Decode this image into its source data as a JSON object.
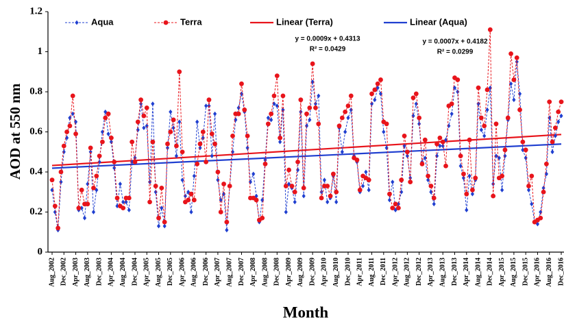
{
  "chart_data": {
    "type": "line",
    "x_label": "Month",
    "y_label": "AOD at 550 nm",
    "ylim": [
      0,
      1.2
    ],
    "yticks": [
      0,
      0.2,
      0.4,
      0.6,
      0.8,
      1,
      1.2
    ],
    "categories": [
      "Aug_2002",
      null,
      null,
      null,
      "Dec_2002",
      null,
      null,
      null,
      "Apr_2003",
      null,
      null,
      null,
      "Aug_2003",
      null,
      null,
      null,
      "Dec_2003",
      null,
      null,
      null,
      "Apr_2004",
      null,
      null,
      null,
      "Aug_2004",
      null,
      null,
      null,
      "Dec_2004",
      null,
      null,
      null,
      "Apr_2005",
      null,
      null,
      null,
      "Aug_2005",
      null,
      null,
      null,
      "Dec_2005",
      null,
      null,
      null,
      "Apr_2006",
      null,
      null,
      null,
      "Aug_2006",
      null,
      null,
      null,
      "Dec_2006",
      null,
      null,
      null,
      "Apr_2007",
      null,
      null,
      null,
      "Aug_2007",
      null,
      null,
      null,
      "Dec_2007",
      null,
      null,
      null,
      "Apr_2008",
      null,
      null,
      null,
      "Aug_2008",
      null,
      null,
      null,
      "Dec_2008",
      null,
      null,
      null,
      "Apr_2009",
      null,
      null,
      null,
      "Aug_2009",
      null,
      null,
      null,
      "Dec_2009",
      null,
      null,
      null,
      "Apr_2010",
      null,
      null,
      null,
      "Aug_2010",
      null,
      null,
      null,
      "Dec_2010",
      null,
      null,
      null,
      "Apr_2011",
      null,
      null,
      null,
      "Aug_2011",
      null,
      null,
      null,
      "Dec_2011",
      null,
      null,
      null,
      "Apr_2012",
      null,
      null,
      null,
      "Aug_2012",
      null,
      null,
      null,
      "Dec_2012",
      null,
      null,
      null,
      "Apr_2013",
      null,
      null,
      null,
      "Aug_2013",
      null,
      null,
      null,
      "Dec_2013",
      null,
      null,
      null,
      "Apr_2014",
      null,
      null,
      null,
      "Aug_2014",
      null,
      null,
      null,
      "Dec_2014",
      null,
      null,
      null,
      "Apr_2015",
      null,
      null,
      null,
      "Aug_2015",
      null,
      null,
      null,
      "Dec_2015",
      null,
      null,
      null,
      "Apr_2016",
      null,
      null,
      null,
      "Aug_2016",
      null,
      null,
      null,
      "Dec_2016"
    ],
    "series": [
      {
        "name": "Aqua",
        "color": "#1f3fd0",
        "marker": "diamond",
        "values": [
          0.31,
          0.2,
          0.11,
          0.35,
          0.5,
          0.57,
          0.67,
          0.69,
          0.65,
          0.21,
          0.22,
          0.17,
          0.34,
          0.5,
          0.2,
          0.31,
          0.45,
          0.6,
          0.7,
          0.59,
          0.55,
          0.42,
          0.23,
          0.34,
          0.25,
          0.25,
          0.21,
          0.45,
          0.47,
          0.61,
          0.74,
          0.62,
          0.63,
          0.35,
          0.74,
          0.3,
          0.13,
          0.22,
          0.13,
          0.52,
          0.7,
          0.62,
          0.48,
          0.65,
          0.36,
          0.28,
          0.3,
          0.2,
          0.38,
          0.65,
          0.52,
          0.57,
          0.73,
          0.73,
          0.48,
          0.69,
          0.36,
          0.26,
          0.29,
          0.11,
          0.33,
          0.5,
          0.66,
          0.72,
          0.79,
          0.7,
          0.52,
          0.35,
          0.39,
          0.28,
          0.15,
          0.26,
          0.46,
          0.67,
          0.66,
          0.74,
          0.73,
          0.55,
          0.71,
          0.2,
          0.34,
          0.32,
          0.25,
          0.41,
          0.7,
          0.28,
          0.63,
          0.66,
          0.85,
          0.74,
          0.78,
          0.3,
          0.36,
          0.25,
          0.27,
          0.38,
          0.25,
          0.62,
          0.5,
          0.6,
          0.67,
          0.71,
          0.48,
          0.45,
          0.3,
          0.33,
          0.4,
          0.31,
          0.74,
          0.76,
          0.82,
          0.79,
          0.6,
          0.52,
          0.26,
          0.35,
          0.21,
          0.24,
          0.3,
          0.53,
          0.48,
          0.37,
          0.68,
          0.74,
          0.64,
          0.45,
          0.47,
          0.36,
          0.3,
          0.24,
          0.48,
          0.53,
          0.53,
          0.56,
          0.63,
          0.69,
          0.82,
          0.8,
          0.43,
          0.37,
          0.21,
          0.38,
          0.29,
          0.36,
          0.74,
          0.61,
          0.58,
          0.71,
          0.82,
          0.34,
          0.48,
          0.47,
          0.31,
          0.48,
          0.66,
          0.84,
          0.76,
          0.95,
          0.79,
          0.51,
          0.47,
          0.31,
          0.24,
          0.15,
          0.14,
          0.2,
          0.32,
          0.39,
          0.67,
          0.5,
          0.58,
          0.65,
          0.68
        ]
      },
      {
        "name": "Terra",
        "color": "#e8141b",
        "marker": "circle",
        "values": [
          0.36,
          0.23,
          0.12,
          0.4,
          0.53,
          0.6,
          0.63,
          0.78,
          0.59,
          0.22,
          0.31,
          0.24,
          0.24,
          0.52,
          0.32,
          0.38,
          0.48,
          0.55,
          0.67,
          0.69,
          0.57,
          0.45,
          0.27,
          0.23,
          0.22,
          0.27,
          0.27,
          0.55,
          0.45,
          0.65,
          0.76,
          0.68,
          0.72,
          0.25,
          0.55,
          0.33,
          0.17,
          0.32,
          0.15,
          0.54,
          0.6,
          0.66,
          0.53,
          0.9,
          0.5,
          0.25,
          0.26,
          0.29,
          0.26,
          0.44,
          0.54,
          0.6,
          0.45,
          0.76,
          0.59,
          0.54,
          0.4,
          0.2,
          0.34,
          0.15,
          0.33,
          0.58,
          0.69,
          0.69,
          0.84,
          0.71,
          0.58,
          0.27,
          0.27,
          0.26,
          0.16,
          0.17,
          0.44,
          0.64,
          0.69,
          0.78,
          0.88,
          0.57,
          0.78,
          0.33,
          0.41,
          0.33,
          0.3,
          0.45,
          0.76,
          0.32,
          0.69,
          0.72,
          0.94,
          0.72,
          0.64,
          0.27,
          0.33,
          0.33,
          0.28,
          0.39,
          0.3,
          0.63,
          0.67,
          0.7,
          0.73,
          0.78,
          0.47,
          0.46,
          0.31,
          0.38,
          0.37,
          0.36,
          0.79,
          0.81,
          0.84,
          0.86,
          0.65,
          0.64,
          0.29,
          0.22,
          0.24,
          0.22,
          0.36,
          0.58,
          0.5,
          0.35,
          0.77,
          0.79,
          0.67,
          0.44,
          0.56,
          0.38,
          0.33,
          0.27,
          0.54,
          0.57,
          0.55,
          0.43,
          0.73,
          0.74,
          0.87,
          0.86,
          0.48,
          0.39,
          0.29,
          0.56,
          0.31,
          0.37,
          0.82,
          0.67,
          0.63,
          0.81,
          1.11,
          0.28,
          0.64,
          0.37,
          0.38,
          0.51,
          0.67,
          0.99,
          0.86,
          0.97,
          0.71,
          0.55,
          0.51,
          0.33,
          0.38,
          0.15,
          0.16,
          0.17,
          0.3,
          0.44,
          0.75,
          0.55,
          0.62,
          0.7,
          0.75
        ]
      }
    ],
    "trendlines": [
      {
        "name": "Linear (Terra)",
        "color": "#e8141b",
        "equation": "y = 0.0009x + 0.4313",
        "r2": "R² = 0.0429",
        "slope": 0.0009,
        "intercept": 0.4313
      },
      {
        "name": "Linear (Aqua)",
        "color": "#1f3fd0",
        "equation": "y = 0.0007x + 0.4182",
        "r2": "R² = 0.0299",
        "slope": 0.0007,
        "intercept": 0.4182
      }
    ]
  }
}
